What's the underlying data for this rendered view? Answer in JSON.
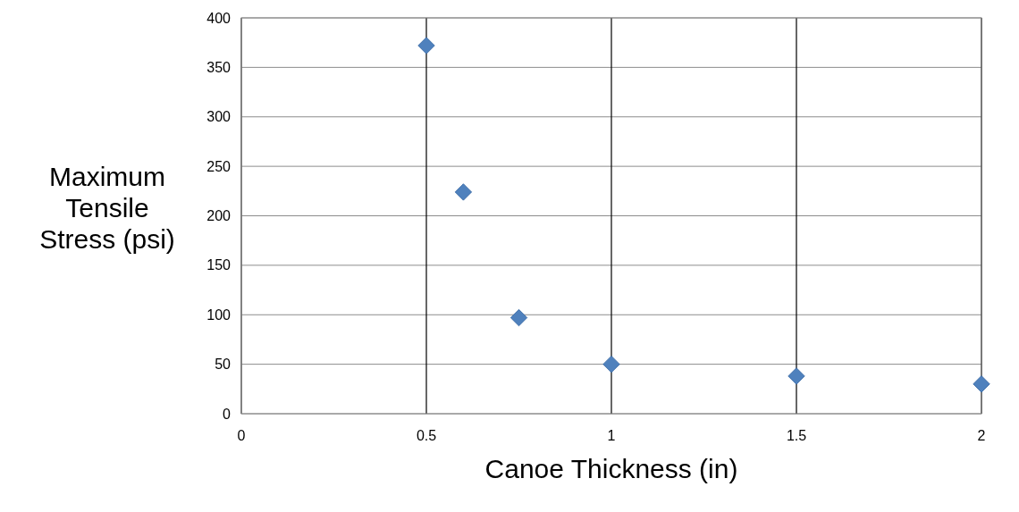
{
  "chart_data": {
    "type": "scatter",
    "xlabel": "Canoe Thickness (in)",
    "ylabel": "Maximum Tensile Stress (psi)",
    "x": [
      0.5,
      0.6,
      0.75,
      1,
      1.5,
      2
    ],
    "series": [
      {
        "color": "#4f81bd",
        "values": [
          372,
          224,
          97,
          50,
          38,
          30
        ]
      }
    ],
    "xlim": [
      0,
      2
    ],
    "xticks": [
      0,
      0.5,
      1,
      1.5,
      2
    ],
    "ylim": [
      0,
      400
    ],
    "yticks": [
      0,
      50,
      100,
      150,
      200,
      250,
      300,
      350,
      400
    ],
    "grid": true,
    "marker": "diamond"
  }
}
